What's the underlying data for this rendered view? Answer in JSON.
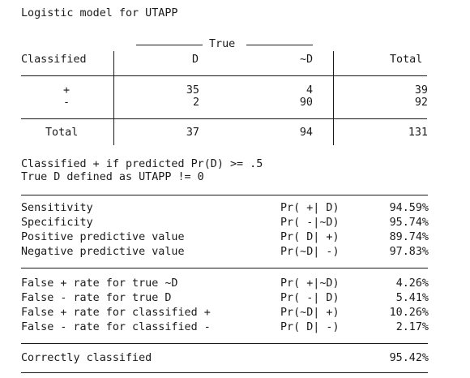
{
  "title": "Logistic model for UTAPP",
  "table": {
    "true_header": "True",
    "col_classified": "Classified",
    "col_d": "D",
    "col_notd": "~D",
    "col_total": "Total",
    "rows": [
      {
        "label": "+",
        "d": "35",
        "notd": "4",
        "total": "39"
      },
      {
        "label": "-",
        "d": "2",
        "notd": "90",
        "total": "92"
      }
    ],
    "total_row": {
      "label": "Total",
      "d": "37",
      "notd": "94",
      "total": "131"
    }
  },
  "notes": [
    "Classified + if predicted Pr(D) >= .5",
    "True D defined as UTAPP != 0"
  ],
  "stats_group1": [
    {
      "label": "Sensitivity",
      "prob": "Pr( +| D)",
      "value": "94.59%"
    },
    {
      "label": "Specificity",
      "prob": "Pr( -|~D)",
      "value": "95.74%"
    },
    {
      "label": "Positive predictive value",
      "prob": "Pr( D| +)",
      "value": "89.74%"
    },
    {
      "label": "Negative predictive value",
      "prob": "Pr(~D| -)",
      "value": "97.83%"
    }
  ],
  "stats_group2": [
    {
      "label": "False + rate for true ~D",
      "prob": "Pr( +|~D)",
      "value": "4.26%"
    },
    {
      "label": "False - rate for true D",
      "prob": "Pr( -| D)",
      "value": "5.41%"
    },
    {
      "label": "False + rate for classified +",
      "prob": "Pr(~D| +)",
      "value": "10.26%"
    },
    {
      "label": "False - rate for classified -",
      "prob": "Pr( D| -)",
      "value": "2.17%"
    }
  ],
  "correct": {
    "label": "Correctly classified",
    "value": "95.42%"
  }
}
